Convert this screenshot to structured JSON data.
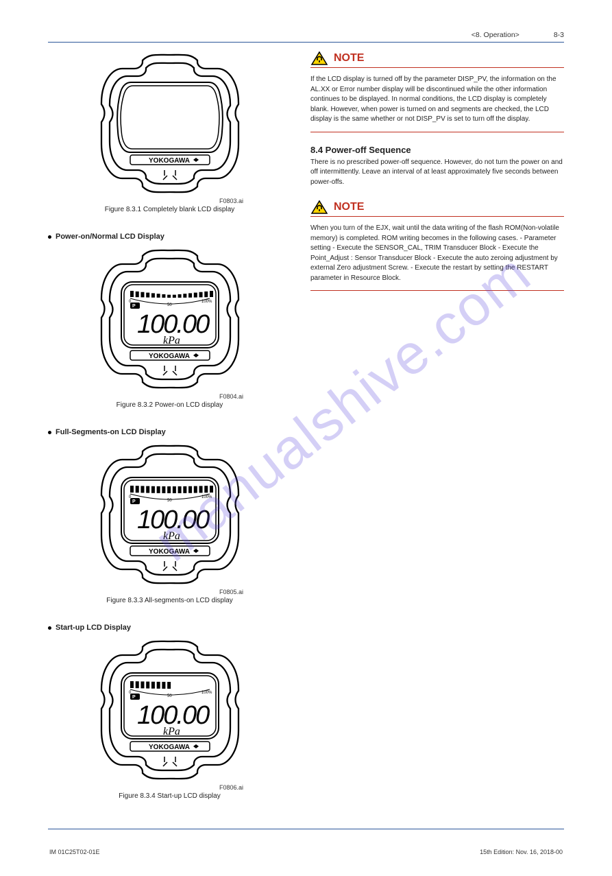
{
  "header": {
    "section": "<8. Operation>",
    "page": "8-3"
  },
  "figures": {
    "blank": {
      "caption": "Figure 8.3.1 Completely blank LCD display",
      "id": "F0803.ai",
      "device_brand": "YOKOGAWA"
    },
    "power_on": {
      "caption": "Figure 8.3.2 Power-on LCD display",
      "id": "F0804.ai",
      "device_brand": "YOKOGAWA",
      "reading": "100.00",
      "unit": "kPa",
      "bar_label_0": "0",
      "bar_label_50": "50",
      "bar_label_100": "100%",
      "segments": 16,
      "segment_color": "#000000",
      "background_color": "#ffffff"
    },
    "full_segments": {
      "caption": "Figure 8.3.3 All-segments-on LCD display",
      "id": "F0805.ai",
      "device_brand": "YOKOGAWA",
      "reading": "100.00",
      "unit": "kPa",
      "bar_label_0": "0",
      "bar_label_50": "50",
      "bar_label_100": "100%",
      "segments": 16,
      "segment_color": "#000000",
      "background_color": "#ffffff"
    },
    "startup": {
      "caption": "Figure 8.3.4 Start-up LCD display",
      "id": "F0806.ai",
      "device_brand": "YOKOGAWA",
      "reading": "100.00",
      "unit": "kPa",
      "bar_label_0": "0",
      "bar_label_50": "50",
      "bar_label_100": "100%",
      "segments_total": 16,
      "segments_on": 8,
      "segment_color": "#000000",
      "background_color": "#ffffff"
    }
  },
  "left_labels": {
    "power_on": "Power-on/Normal LCD Display",
    "full_on": "Full-Segments-on LCD Display",
    "startup": "Start-up LCD Display"
  },
  "right": {
    "note1": {
      "heading": "NOTE",
      "body": "If the LCD display is turned off by the parameter DISP_PV, the information on the AL.XX or Error number display will be discontinued while the other information continues to be displayed. In normal conditions, the LCD display is completely blank. However, when power is turned on and segments are checked, the LCD display is the same whether or not DISP_PV is set to turn off the display."
    },
    "section_8_4": {
      "heading": "8.4 Power-off Sequence",
      "body": "There is no prescribed power-off sequence. However, do not turn the power on and off intermittently. Leave an interval of at least approximately five seconds between power-offs."
    },
    "note2": {
      "heading": "NOTE",
      "body": "When you turn of the EJX, wait until the data writing of the flash ROM(Non-volatile memory) is completed. ROM writing becomes in the following cases. - Parameter setting - Execute the SENSOR_CAL, TRIM        Transducer Block - Execute the Point_Adjust : Sensor Transducer Block - Execute the auto zeroing adjustment by external Zero adjustment Screw. - Execute the restart by setting the RESTART parameter in Resource Block."
    }
  },
  "footer": {
    "left": "IM 01C25T02-01E",
    "right": "15th Edition: Nov. 16, 2018-00"
  },
  "watermark": "manualshive.com",
  "colors": {
    "blue_rule": "#2a5599",
    "red_heading": "#c03020",
    "red_rule": "#c03020",
    "watermark": "rgba(90,70,220,0.26)"
  }
}
